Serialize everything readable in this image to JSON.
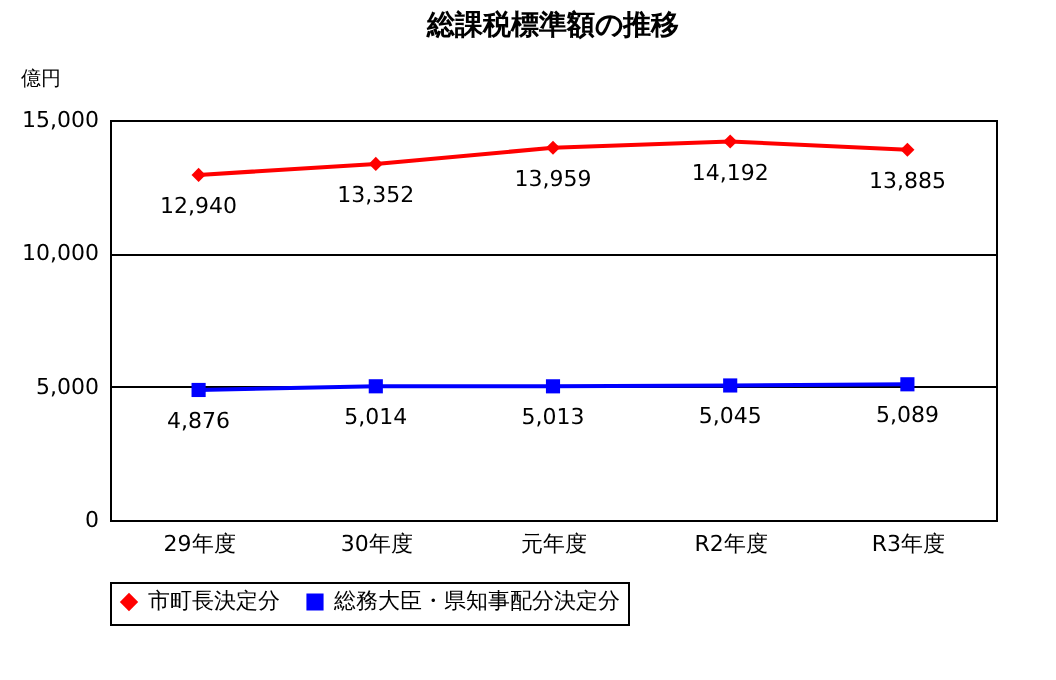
{
  "chart_data": {
    "type": "line",
    "title": "総課税標準額の推移",
    "ylabel": "億円",
    "categories": [
      "29年度",
      "30年度",
      "元年度",
      "R2年度",
      "R3年度"
    ],
    "series": [
      {
        "name": "市町長決定分",
        "color": "#ff0000",
        "marker": "diamond",
        "values": [
          12940,
          13352,
          13959,
          14192,
          13885
        ],
        "value_labels": [
          "12,940",
          "13,352",
          "13,959",
          "14,192",
          "13,885"
        ]
      },
      {
        "name": "総務大臣・県知事配分決定分",
        "color": "#0000ff",
        "marker": "square",
        "values": [
          4876,
          5014,
          5013,
          5045,
          5089
        ],
        "value_labels": [
          "4,876",
          "5,014",
          "5,013",
          "5,045",
          "5,089"
        ]
      }
    ],
    "ylim": [
      0,
      15000
    ],
    "yticks": [
      0,
      {
        "value": 5000,
        "label": "5,000"
      },
      {
        "value": 10000,
        "label": "10,000"
      },
      {
        "value": 15000,
        "label": "15,000"
      }
    ],
    "grid": "y",
    "legend": "bottom",
    "line_style": "solid"
  }
}
